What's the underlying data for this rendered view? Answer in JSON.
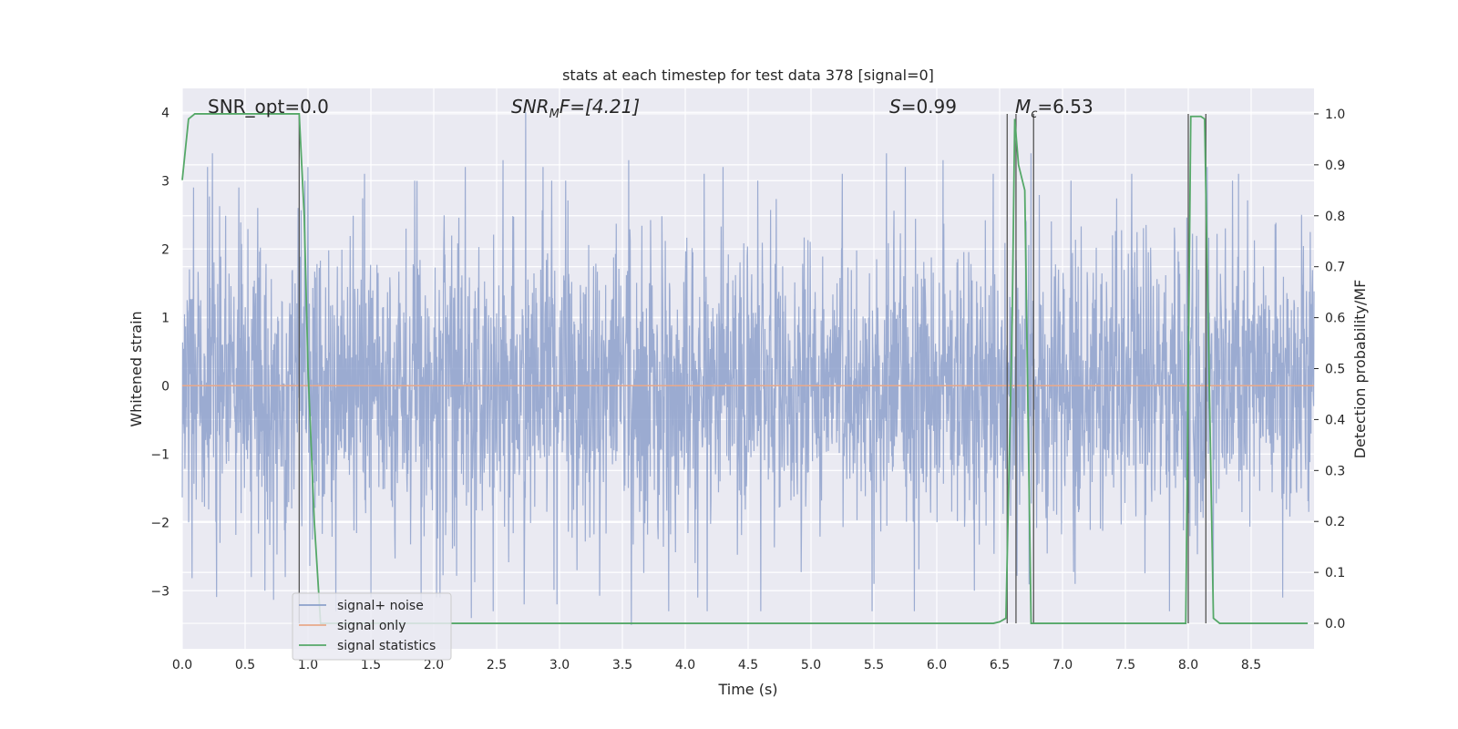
{
  "chart_data": {
    "type": "line",
    "title": "stats at each timestep for test data 378 [signal=0]",
    "xlabel": "Time (s)",
    "ylabel_left": "Whitened strain",
    "ylabel_right": "Detection probability/MF",
    "xlim": [
      0.0,
      9.0
    ],
    "ylim_left": [
      -3.85,
      4.35
    ],
    "ylim_right": [
      -0.05,
      1.05
    ],
    "xticks": [
      "0.0",
      "0.5",
      "1.0",
      "1.5",
      "2.0",
      "2.5",
      "3.0",
      "3.5",
      "4.0",
      "4.5",
      "5.0",
      "5.5",
      "6.0",
      "6.5",
      "7.0",
      "7.5",
      "8.0",
      "8.5"
    ],
    "yticks_left": [
      "4",
      "3",
      "2",
      "1",
      "0",
      "−1",
      "−2",
      "−3"
    ],
    "yticks_right": [
      "1.0",
      "0.9",
      "0.8",
      "0.7",
      "0.6",
      "0.5",
      "0.4",
      "0.3",
      "0.2",
      "0.1",
      "0.0"
    ],
    "grid": true,
    "legend_position": "bottom-left",
    "annotations": {
      "snr_opt": "SNR_opt=0.0",
      "snr_mf_base": "SNR",
      "snr_mf_sub": "M",
      "snr_mf_rest": "F=[4.21]",
      "s_var": "S",
      "s_val": "=0.99",
      "mc_base": "M",
      "mc_sub": "c",
      "mc_val": "=6.53"
    },
    "series": [
      {
        "name": "signal+ noise",
        "color": "#8da0cb",
        "description_values": "noise strain, approx. Gaussian, amplitude range about -3.5 to 4.0",
        "peaks": [
          [
            0.09,
            2.9
          ],
          [
            0.2,
            3.2
          ],
          [
            0.24,
            3.4
          ],
          [
            0.3,
            2.5
          ],
          [
            0.45,
            2.9
          ],
          [
            0.6,
            2.6
          ],
          [
            0.92,
            2.6
          ],
          [
            1.0,
            3.2
          ],
          [
            1.45,
            3.1
          ],
          [
            1.85,
            3.0
          ],
          [
            2.25,
            3.2
          ],
          [
            2.55,
            3.3
          ],
          [
            2.73,
            4.0
          ],
          [
            2.87,
            3.2
          ],
          [
            3.05,
            3.0
          ],
          [
            3.55,
            3.3
          ],
          [
            4.15,
            3.1
          ],
          [
            4.3,
            3.2
          ],
          [
            5.25,
            3.1
          ],
          [
            5.6,
            3.4
          ],
          [
            5.75,
            3.2
          ],
          [
            6.05,
            3.3
          ],
          [
            6.3,
            3.3
          ],
          [
            6.45,
            3.1
          ],
          [
            6.75,
            3.4
          ],
          [
            7.1,
            3.2
          ],
          [
            7.55,
            3.1
          ],
          [
            8.15,
            3.2
          ],
          [
            8.4,
            3.1
          ],
          [
            8.9,
            2.5
          ]
        ],
        "troughs": [
          [
            0.05,
            -2.0
          ],
          [
            0.3,
            -2.3
          ],
          [
            0.55,
            -2.8
          ],
          [
            0.82,
            -2.8
          ],
          [
            1.5,
            -3.1
          ],
          [
            1.9,
            -3.3
          ],
          [
            2.05,
            -3.1
          ],
          [
            2.3,
            -3.4
          ],
          [
            2.72,
            -3.2
          ],
          [
            2.98,
            -3.2
          ],
          [
            3.57,
            -3.5
          ],
          [
            4.1,
            -3.1
          ],
          [
            4.6,
            -3.3
          ],
          [
            5.5,
            -2.9
          ],
          [
            6.3,
            -3.0
          ],
          [
            7.1,
            -2.9
          ],
          [
            7.85,
            -3.3
          ],
          [
            8.2,
            -3.1
          ],
          [
            8.75,
            -3.1
          ]
        ]
      },
      {
        "name": "signal only",
        "color": "#e8a98a",
        "x": [
          0.0,
          9.0
        ],
        "y": [
          0.0,
          0.0
        ]
      },
      {
        "name": "signal statistics",
        "color": "#55a868",
        "x": [
          0.0,
          0.05,
          0.1,
          0.2,
          0.9,
          0.93,
          0.97,
          1.0,
          1.05,
          1.1,
          1.2,
          1.5,
          2.0,
          3.0,
          4.0,
          5.0,
          5.5,
          6.0,
          6.45,
          6.5,
          6.55,
          6.6,
          6.62,
          6.65,
          6.7,
          6.75,
          6.8,
          7.0,
          7.5,
          7.98,
          8.02,
          8.05,
          8.08,
          8.1,
          8.13,
          8.2,
          8.25,
          8.5,
          8.95
        ],
        "y": [
          0.87,
          0.99,
          1.0,
          1.0,
          1.0,
          1.0,
          0.8,
          0.5,
          0.2,
          0.0,
          0.0,
          0.0,
          0.0,
          0.0,
          0.0,
          0.0,
          0.0,
          0.0,
          0.0,
          0.003,
          0.01,
          0.6,
          0.99,
          0.9,
          0.85,
          0.0,
          0.0,
          0.0,
          0.0,
          0.0,
          0.995,
          0.995,
          0.995,
          0.995,
          0.99,
          0.01,
          0.0,
          0.0,
          0.0
        ]
      }
    ],
    "vertical_markers_x": [
      0.93,
      6.56,
      6.63,
      6.77,
      8.0,
      8.14
    ]
  }
}
